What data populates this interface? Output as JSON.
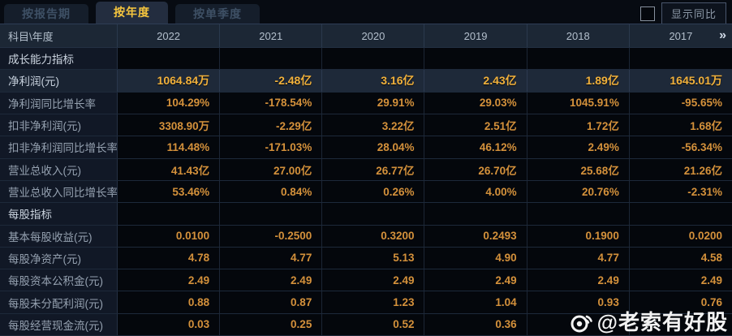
{
  "tabs": {
    "items": [
      {
        "name": "by-report-period",
        "label": "按报告期",
        "active": false
      },
      {
        "name": "by-year",
        "label": "按年度",
        "active": true
      },
      {
        "name": "by-quarter",
        "label": "按单季度",
        "active": false
      }
    ]
  },
  "controls": {
    "show_yoy_label": "显示同比",
    "show_yoy_checked": false
  },
  "table": {
    "corner_label": "科目\\年度",
    "years": [
      "2022",
      "2021",
      "2020",
      "2019",
      "2018",
      "2017"
    ],
    "more_icon": "»",
    "rows": [
      {
        "name": "growth-indicators",
        "type": "section",
        "label": "成长能力指标",
        "values": [
          "",
          "",
          "",
          "",
          "",
          ""
        ]
      },
      {
        "name": "net-profit",
        "type": "highlight",
        "label": "净利润(元)",
        "values": [
          "1064.84万",
          "-2.48亿",
          "3.16亿",
          "2.43亿",
          "1.89亿",
          "1645.01万"
        ]
      },
      {
        "name": "net-profit-yoy",
        "type": "data",
        "label": "净利润同比增长率",
        "values": [
          "104.29%",
          "-178.54%",
          "29.91%",
          "29.03%",
          "1045.91%",
          "-95.65%"
        ]
      },
      {
        "name": "non-gaap-net-profit",
        "type": "data",
        "label": "扣非净利润(元)",
        "values": [
          "3308.90万",
          "-2.29亿",
          "3.22亿",
          "2.51亿",
          "1.72亿",
          "1.68亿"
        ]
      },
      {
        "name": "non-gaap-net-profit-yoy",
        "type": "data",
        "label": "扣非净利润同比增长率",
        "values": [
          "114.48%",
          "-171.03%",
          "28.04%",
          "46.12%",
          "2.49%",
          "-56.34%"
        ]
      },
      {
        "name": "total-revenue",
        "type": "data",
        "label": "营业总收入(元)",
        "values": [
          "41.43亿",
          "27.00亿",
          "26.77亿",
          "26.70亿",
          "25.68亿",
          "21.26亿"
        ]
      },
      {
        "name": "total-revenue-yoy",
        "type": "data",
        "label": "营业总收入同比增长率",
        "values": [
          "53.46%",
          "0.84%",
          "0.26%",
          "4.00%",
          "20.76%",
          "-2.31%"
        ]
      },
      {
        "name": "per-share-indicators",
        "type": "section",
        "label": "每股指标",
        "values": [
          "",
          "",
          "",
          "",
          "",
          ""
        ]
      },
      {
        "name": "eps-basic",
        "type": "data",
        "label": "基本每股收益(元)",
        "values": [
          "0.0100",
          "-0.2500",
          "0.3200",
          "0.2493",
          "0.1900",
          "0.0200"
        ]
      },
      {
        "name": "net-assets-per-share",
        "type": "data",
        "label": "每股净资产(元)",
        "values": [
          "4.78",
          "4.77",
          "5.13",
          "4.90",
          "4.77",
          "4.58"
        ]
      },
      {
        "name": "capital-reserve-per-share",
        "type": "data",
        "label": "每股资本公积金(元)",
        "values": [
          "2.49",
          "2.49",
          "2.49",
          "2.49",
          "2.49",
          "2.49"
        ]
      },
      {
        "name": "undistributed-profit-per-share",
        "type": "data",
        "label": "每股未分配利润(元)",
        "values": [
          "0.88",
          "0.87",
          "1.23",
          "1.04",
          "0.93",
          "0.76"
        ]
      },
      {
        "name": "operating-cashflow-per-share",
        "type": "data",
        "label": "每股经营现金流(元)",
        "values": [
          "0.03",
          "0.25",
          "0.52",
          "0.36",
          "",
          ""
        ]
      }
    ]
  },
  "watermark": {
    "text": "@老索有好股",
    "icon": "weibo-icon"
  },
  "colors": {
    "accent_gold": "#f6c63e",
    "value_orange": "#d4913b",
    "highlight_row_bg": "#1e2939",
    "header_bg": "#1c2735",
    "label_cell_bg": "#111826",
    "value_cell_bg": "#04070c"
  }
}
